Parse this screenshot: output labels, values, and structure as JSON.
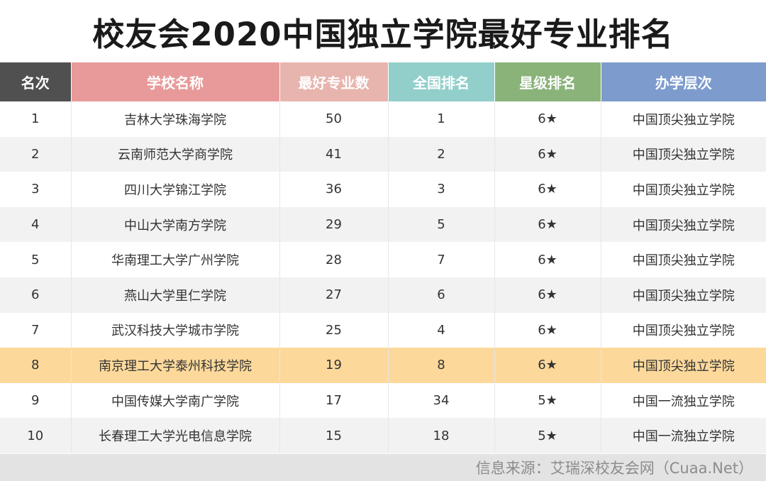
{
  "title": "校友会2020中国独立学院最好专业排名",
  "colors": {
    "header": [
      "#505050",
      "#e89a9a",
      "#e8b4ae",
      "#92cfcb",
      "#8ab37a",
      "#7d9bcd"
    ],
    "highlight_row": "#fcd99b"
  },
  "table": {
    "headers": [
      "名次",
      "学校名称",
      "最好专业数",
      "全国排名",
      "星级排名",
      "办学层次"
    ],
    "rows": [
      {
        "rank": "1",
        "name": "吉林大学珠海学院",
        "count": "50",
        "national": "1",
        "stars": "6★",
        "level": "中国顶尖独立学院"
      },
      {
        "rank": "2",
        "name": "云南师范大学商学院",
        "count": "41",
        "national": "2",
        "stars": "6★",
        "level": "中国顶尖独立学院"
      },
      {
        "rank": "3",
        "name": "四川大学锦江学院",
        "count": "36",
        "national": "3",
        "stars": "6★",
        "level": "中国顶尖独立学院"
      },
      {
        "rank": "4",
        "name": "中山大学南方学院",
        "count": "29",
        "national": "5",
        "stars": "6★",
        "level": "中国顶尖独立学院"
      },
      {
        "rank": "5",
        "name": "华南理工大学广州学院",
        "count": "28",
        "national": "7",
        "stars": "6★",
        "level": "中国顶尖独立学院"
      },
      {
        "rank": "6",
        "name": "燕山大学里仁学院",
        "count": "27",
        "national": "6",
        "stars": "6★",
        "level": "中国顶尖独立学院"
      },
      {
        "rank": "7",
        "name": "武汉科技大学城市学院",
        "count": "25",
        "national": "4",
        "stars": "6★",
        "level": "中国顶尖独立学院"
      },
      {
        "rank": "8",
        "name": "南京理工大学泰州科技学院",
        "count": "19",
        "national": "8",
        "stars": "6★",
        "level": "中国顶尖独立学院",
        "highlight": true
      },
      {
        "rank": "9",
        "name": "中国传媒大学南广学院",
        "count": "17",
        "national": "34",
        "stars": "5★",
        "level": "中国一流独立学院"
      },
      {
        "rank": "10",
        "name": "长春理工大学光电信息学院",
        "count": "15",
        "national": "18",
        "stars": "5★",
        "level": "中国一流独立学院"
      }
    ]
  },
  "footer": {
    "source": "信息来源：艾瑞深校友会网（Cuaa.Net）"
  }
}
